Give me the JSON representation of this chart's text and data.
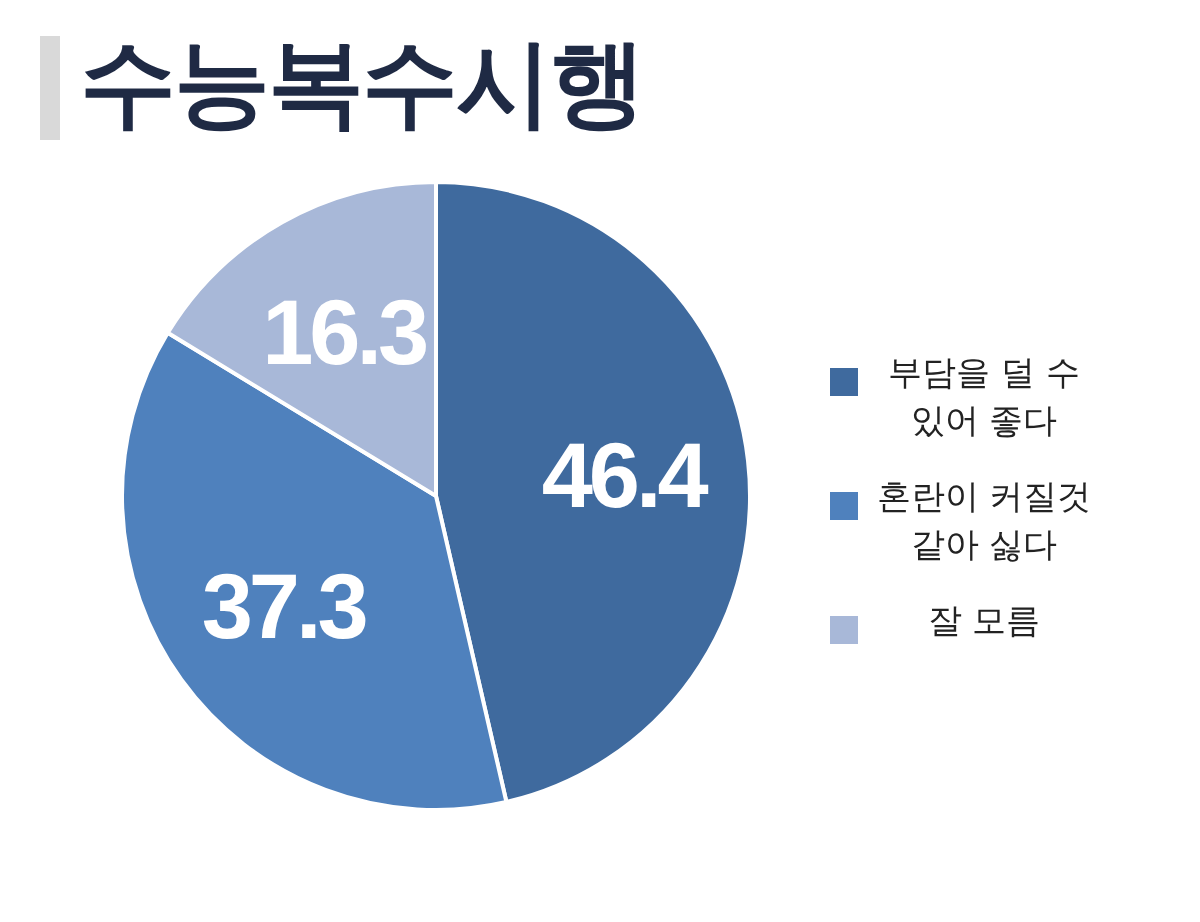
{
  "chart_data": {
    "type": "pie",
    "title": "수능복수시행",
    "categories": [
      "부담을 덜 수 있어 좋다",
      "혼란이 커질것 같아 싫다",
      "잘 모름"
    ],
    "values": [
      46.4,
      37.3,
      16.3
    ],
    "colors": [
      "#3f6a9e",
      "#4f81bd",
      "#a8b8d8"
    ],
    "data_labels": true,
    "legend": "right"
  }
}
